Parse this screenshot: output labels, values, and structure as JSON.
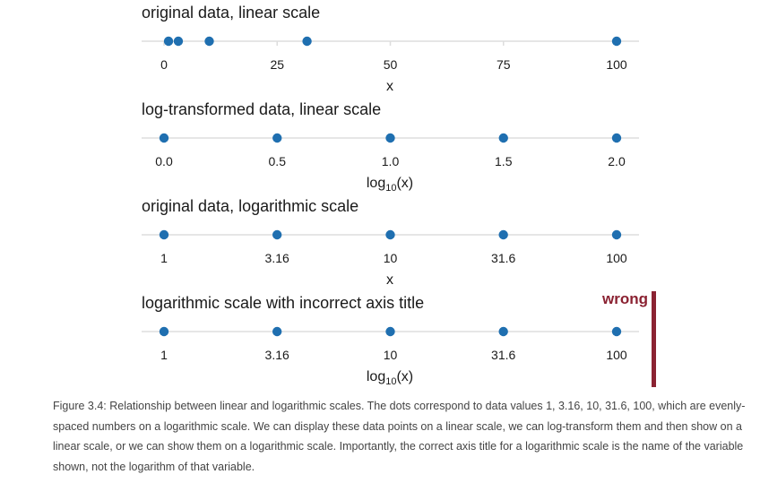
{
  "chart_data": [
    {
      "type": "scatter",
      "title": "original data, linear scale",
      "xlabel": "x",
      "xlabel_sub": "",
      "xlabel_suffix": "",
      "scale": "linear",
      "xlim": [
        0,
        100
      ],
      "x_ticks": [
        0,
        25,
        50,
        75,
        100
      ],
      "tick_labels": [
        "0",
        "25",
        "50",
        "75",
        "100"
      ],
      "values": [
        1,
        3.16,
        10,
        31.6,
        100
      ],
      "grid": true
    },
    {
      "type": "scatter",
      "title": "log-transformed data, linear scale",
      "xlabel": "log",
      "xlabel_sub": "10",
      "xlabel_suffix": "(x)",
      "scale": "linear",
      "xlim": [
        0,
        2
      ],
      "x_ticks": [
        0,
        0.5,
        1,
        1.5,
        2
      ],
      "tick_labels": [
        "0.0",
        "0.5",
        "1.0",
        "1.5",
        "2.0"
      ],
      "values": [
        0,
        0.5,
        1,
        1.5,
        2
      ],
      "grid": true
    },
    {
      "type": "scatter",
      "title": "original data, logarithmic scale",
      "xlabel": "x",
      "xlabel_sub": "",
      "xlabel_suffix": "",
      "scale": "log",
      "xlim": [
        1,
        100
      ],
      "x_ticks": [
        1,
        3.16,
        10,
        31.6,
        100
      ],
      "tick_labels": [
        "1",
        "3.16",
        "10",
        "31.6",
        "100"
      ],
      "values": [
        1,
        3.16,
        10,
        31.6,
        100
      ],
      "grid": true
    },
    {
      "type": "scatter",
      "title": "logarithmic scale with incorrect axis title",
      "xlabel": "log",
      "xlabel_sub": "10",
      "xlabel_suffix": "(x)",
      "scale": "log",
      "xlim": [
        1,
        100
      ],
      "x_ticks": [
        1,
        3.16,
        10,
        31.6,
        100
      ],
      "tick_labels": [
        "1",
        "3.16",
        "10",
        "31.6",
        "100"
      ],
      "values": [
        1,
        3.16,
        10,
        31.6,
        100
      ],
      "grid": true,
      "flag": "wrong"
    }
  ],
  "colors": {
    "point": "#1f6fb0",
    "axis_line": "#dddddd",
    "wrong": "#8b2232"
  },
  "caption": "Figure 3.4: Relationship between linear and logarithmic scales. The dots correspond to data values 1, 3.16, 10, 31.6, 100, which are evenly-spaced numbers on a logarithmic scale. We can display these data points on a linear scale, we can log-transform them and then show on a linear scale, or we can show them on a logarithmic scale. Importantly, the correct axis title for a logarithmic scale is the name of the variable shown, not the logarithm of that variable."
}
